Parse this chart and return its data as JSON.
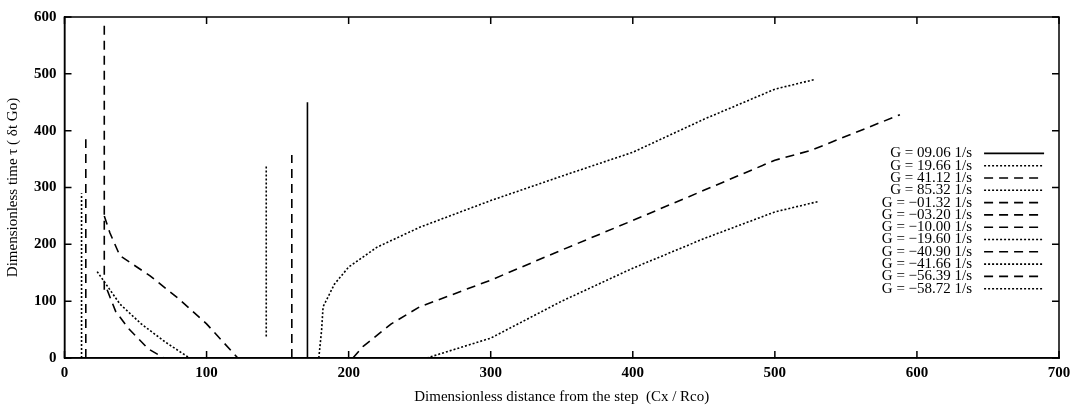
{
  "chart_data": {
    "type": "line",
    "xlabel": "Dimensionless distance from the step  (Cx / Rco)",
    "ylabel": "Dimensionless time τ ( δt Go)",
    "xlim": [
      0,
      700
    ],
    "ylim": [
      0,
      600
    ],
    "xticks": [
      0,
      100,
      200,
      300,
      400,
      500,
      600,
      700
    ],
    "yticks": [
      0,
      100,
      200,
      300,
      400,
      500,
      600
    ],
    "grid": false,
    "legend": "right",
    "marker": "none",
    "series": [
      {
        "name": "G = 09.06 1/s",
        "color": "#000000",
        "line_style": "solid",
        "x": [
          171,
          171
        ],
        "values": [
          0,
          450
        ]
      },
      {
        "name": "G = 19.66 1/s",
        "color": "#000000",
        "line_style": "dotted",
        "x": [
          179,
          181,
          182,
          190,
          200,
          220,
          250,
          300,
          350,
          400,
          450,
          500,
          528
        ],
        "values": [
          0,
          50,
          90,
          130,
          160,
          195,
          230,
          277,
          320,
          362,
          420,
          473,
          490
        ]
      },
      {
        "name": "G = 41.12 1/s",
        "color": "#000000",
        "line_style": "dashed",
        "x": [
          160,
          160
        ],
        "values": [
          0,
          357
        ]
      },
      {
        "name": "G = 85.32 1/s",
        "color": "#000000",
        "line_style": "dotted",
        "x": [
          142,
          142
        ],
        "values": [
          38,
          340
        ]
      },
      {
        "name": "G = −01.32 1/s",
        "color": "#000000",
        "line_style": "dashed",
        "x": [
          28,
          28
        ],
        "values": [
          120,
          587
        ]
      },
      {
        "name": "G = −03.20 1/s",
        "color": "#000000",
        "line_style": "dashed",
        "x": [
          28,
          32,
          39,
          60,
          80,
          100,
          122
        ],
        "values": [
          250,
          220,
          180,
          145,
          105,
          60,
          0
        ]
      },
      {
        "name": "G = −10.00 1/s",
        "color": "#000000",
        "line_style": "dashed",
        "x": [
          15,
          15
        ],
        "values": [
          0,
          385
        ]
      },
      {
        "name": "G = −19.60 1/s",
        "color": "#000000",
        "line_style": "dotted",
        "x": [
          12,
          12
        ],
        "values": [
          0,
          290
        ]
      },
      {
        "name": "G = −40.90 1/s",
        "color": "#000000",
        "line_style": "dashed",
        "x": [
          30,
          36,
          45,
          59,
          70
        ],
        "values": [
          120,
          82,
          52,
          16,
          0
        ]
      },
      {
        "name": "G = −41.66 1/s",
        "color": "#000000",
        "line_style": "dotted",
        "x": [
          23,
          39,
          54,
          71,
          88
        ],
        "values": [
          152,
          95,
          60,
          28,
          0
        ]
      },
      {
        "name": "G = −56.39 1/s",
        "color": "#000000",
        "line_style": "dashed",
        "x": [
          203,
          210,
          230,
          250,
          300,
          350,
          400,
          450,
          500,
          525,
          588
        ],
        "values": [
          0,
          20,
          60,
          90,
          137,
          190,
          242,
          295,
          348,
          365,
          428
        ]
      },
      {
        "name": "G = −58.72 1/s",
        "color": "#000000",
        "line_style": "dotted",
        "x": [
          255,
          300,
          350,
          400,
          450,
          500,
          530
        ],
        "values": [
          0,
          35,
          100,
          158,
          210,
          257,
          275
        ]
      }
    ]
  }
}
